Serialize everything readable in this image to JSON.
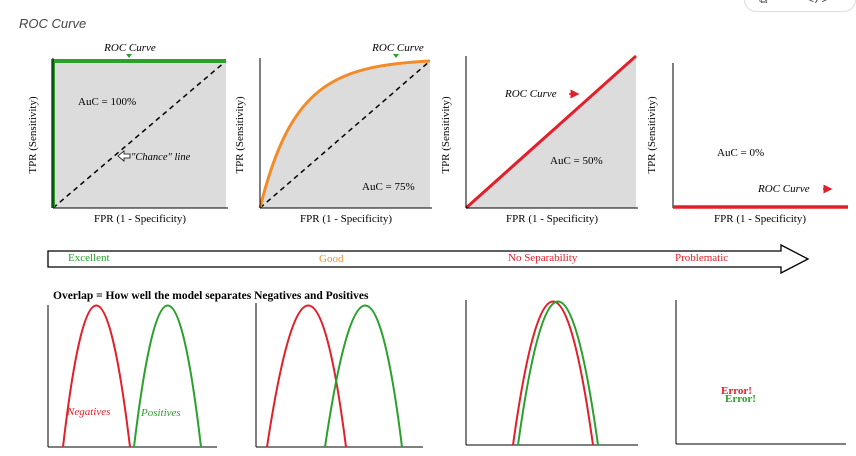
{
  "caption": "ROC Curve",
  "top_controls": {
    "copy_icon": "copy-icon",
    "code_icon": "code-icon"
  },
  "panels": [
    {
      "roc_label": "ROC Curve",
      "auc_label": "AuC = 100%",
      "chance_label": "\"Chance\" line",
      "xlabel": "FPR (1 - Specificity)",
      "ylabel": "TPR (Sensitivity)"
    },
    {
      "roc_label": "ROC Curve",
      "auc_label": "AuC = 75%",
      "xlabel": "FPR (1 - Specificity)",
      "ylabel": "TPR (Sensitivity)"
    },
    {
      "roc_label": "ROC Curve",
      "auc_label": "AuC = 50%",
      "xlabel": "FPR (1 - Specificity)",
      "ylabel": "TPR (Sensitivity)"
    },
    {
      "roc_label": "ROC Curve",
      "auc_label": "AuC = 0%",
      "xlabel": "FPR (1 - Specificity)",
      "ylabel": "TPR (Sensitivity)"
    }
  ],
  "scale": [
    {
      "label": "Excellent",
      "color": "#2ca02c"
    },
    {
      "label": "Good",
      "color": "#f28c28"
    },
    {
      "label": "No Separability",
      "color": "#e0202a"
    },
    {
      "label": "Problematic",
      "color": "#e0202a"
    }
  ],
  "overlap_title": "Overlap = How well the model separates Negatives and Positives",
  "dist_labels": {
    "negatives": "Negatives",
    "positives": "Positives",
    "error_red": "Error!",
    "error_green": "Error!"
  },
  "colors": {
    "red": "#e0202a",
    "green": "#2ca02c",
    "orange": "#f28c28",
    "gray_fill": "#dcdcdc"
  }
}
